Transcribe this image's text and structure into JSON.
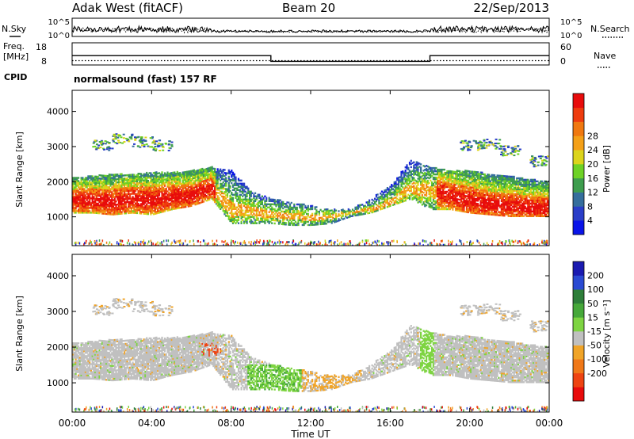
{
  "header": {
    "station": "Adak West (fitACF)",
    "beam": "Beam 20",
    "date": "22/Sep/2013"
  },
  "noise_panel": {
    "left_label": "N.Sky",
    "right_label": "N.Search",
    "left_ticks": [
      "10^5",
      "10^0"
    ],
    "right_ticks": [
      "10^5",
      "10^0"
    ]
  },
  "freq_panel": {
    "left_label_line1": "Freq.",
    "left_label_line2": "[MHz]",
    "left_ticks": [
      "18",
      "8"
    ],
    "right_label": "Nave",
    "right_ticks": [
      "60",
      "0"
    ],
    "cpid_label": "CPID",
    "cpid_text": "normalsound (fast) 157 RF"
  },
  "power_panel": {
    "ylabel": "Slant Range [km]",
    "yticks": [
      "1000",
      "2000",
      "3000",
      "4000"
    ],
    "colorbar_label": "Power [dB]",
    "colorbar_ticks": [
      "4",
      "8",
      "12",
      "16",
      "20",
      "24",
      "28"
    ],
    "colorbar_colors": [
      "#0a14e8",
      "#2a3ec8",
      "#356e9c",
      "#3e9d4e",
      "#6ed226",
      "#dcd41c",
      "#f4a018",
      "#f07810",
      "#ee3c0e",
      "#e80c0c"
    ]
  },
  "velocity_panel": {
    "ylabel": "Slant Range [km]",
    "yticks": [
      "1000",
      "2000",
      "3000",
      "4000"
    ],
    "colorbar_label": "Velocity [m s⁻¹]",
    "colorbar_ticks": [
      "200",
      "100",
      "50",
      "15",
      "-15",
      "-50",
      "-100",
      "-200"
    ],
    "colorbar_colors": [
      "#1a1ab0",
      "#2a4ad2",
      "#2e7e3a",
      "#46a83a",
      "#7ed442",
      "#c0c0c0",
      "#f0a428",
      "#f07818",
      "#ee4412",
      "#e80c0c"
    ]
  },
  "xaxis": {
    "ticks": [
      "00:00",
      "04:00",
      "08:00",
      "12:00",
      "16:00",
      "20:00",
      "00:00"
    ],
    "label": "Time UT"
  },
  "chart_data": {
    "type": "heatmap",
    "title": "Adak West (fitACF) Beam 20 22/Sep/2013",
    "xlabel": "Time UT",
    "ylabel": "Slant Range [km]",
    "x_range_hours": [
      0,
      24
    ],
    "y_range_km": [
      180,
      4600
    ],
    "freq_mhz_steps": [
      {
        "from_hour": 0,
        "to_hour": 10,
        "freq": 14
      },
      {
        "from_hour": 10,
        "to_hour": 18,
        "freq": 10
      },
      {
        "from_hour": 18,
        "to_hour": 24,
        "freq": 14
      }
    ],
    "nave_level": 15,
    "power_bands": [
      {
        "t": 0.0,
        "lo": 1100,
        "hi": 2100,
        "peak": 1450
      },
      {
        "t": 1.0,
        "lo": 1100,
        "hi": 2150,
        "peak": 1450
      },
      {
        "t": 2.0,
        "lo": 1050,
        "hi": 2200,
        "peak": 1400
      },
      {
        "t": 3.0,
        "lo": 1100,
        "hi": 2200,
        "peak": 1500
      },
      {
        "t": 4.0,
        "lo": 1050,
        "hi": 2250,
        "peak": 1450
      },
      {
        "t": 5.0,
        "lo": 1200,
        "hi": 2250,
        "peak": 1550
      },
      {
        "t": 6.0,
        "lo": 1300,
        "hi": 2300,
        "peak": 1600
      },
      {
        "t": 7.0,
        "lo": 1500,
        "hi": 2400,
        "peak": 1800
      },
      {
        "t": 8.0,
        "lo": 800,
        "hi": 2300,
        "peak": 1200
      },
      {
        "t": 9.0,
        "lo": 800,
        "hi": 1700,
        "peak": 1150
      },
      {
        "t": 10.0,
        "lo": 800,
        "hi": 1500,
        "peak": 1050
      },
      {
        "t": 11.0,
        "lo": 750,
        "hi": 1400,
        "peak": 1000
      },
      {
        "t": 12.0,
        "lo": 750,
        "hi": 1300,
        "peak": 950
      },
      {
        "t": 13.0,
        "lo": 800,
        "hi": 1200,
        "peak": 1000
      },
      {
        "t": 14.0,
        "lo": 1000,
        "hi": 1200,
        "peak": 1100
      },
      {
        "t": 15.0,
        "lo": 1100,
        "hi": 1500,
        "peak": 1200
      },
      {
        "t": 16.0,
        "lo": 1300,
        "hi": 1900,
        "peak": 1400
      },
      {
        "t": 17.0,
        "lo": 1500,
        "hi": 2600,
        "peak": 1800
      },
      {
        "t": 18.0,
        "lo": 1200,
        "hi": 2400,
        "peak": 1700
      },
      {
        "t": 19.0,
        "lo": 1200,
        "hi": 2300,
        "peak": 1600
      },
      {
        "t": 20.0,
        "lo": 1100,
        "hi": 2300,
        "peak": 1450
      },
      {
        "t": 21.0,
        "lo": 1050,
        "hi": 2200,
        "peak": 1350
      },
      {
        "t": 22.0,
        "lo": 1000,
        "hi": 2150,
        "peak": 1300
      },
      {
        "t": 23.0,
        "lo": 1000,
        "hi": 2050,
        "peak": 1250
      },
      {
        "t": 24.0,
        "lo": 1000,
        "hi": 2000,
        "peak": 1250
      }
    ],
    "upper_band": [
      {
        "t": 1.5,
        "range": 3050
      },
      {
        "t": 2.5,
        "range": 3250
      },
      {
        "t": 3.5,
        "range": 3150
      },
      {
        "t": 4.5,
        "range": 3050
      },
      {
        "t": 20.0,
        "range": 3050
      },
      {
        "t": 21.0,
        "range": 3100
      },
      {
        "t": 22.0,
        "range": 2900
      },
      {
        "t": 23.5,
        "range": 2600
      }
    ]
  }
}
